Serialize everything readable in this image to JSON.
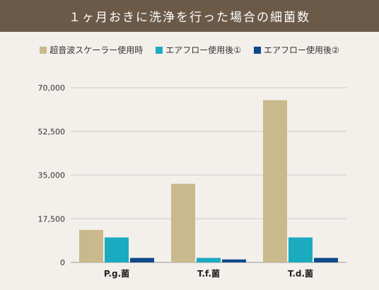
{
  "title": "１ヶ月おきに洗浄を行った場合の細菌数",
  "colors": {
    "title_bg": "#6b5a48",
    "series": [
      "#c9b98c",
      "#1aabc1",
      "#0d4a8c"
    ],
    "grid": "#cccccc",
    "background": "#f3efea"
  },
  "legend": [
    "超音波スケーラー使用時",
    "エアフロー使用後①",
    "エアフロー使用後②"
  ],
  "chart_data": {
    "type": "bar",
    "categories": [
      "P.g.菌",
      "T.f.菌",
      "T.d.菌"
    ],
    "series": [
      {
        "name": "超音波スケーラー使用時",
        "values": [
          13000,
          31500,
          65000
        ]
      },
      {
        "name": "エアフロー使用後①",
        "values": [
          10000,
          1800,
          10000
        ]
      },
      {
        "name": "エアフロー使用後②",
        "values": [
          1800,
          1200,
          1800
        ]
      }
    ],
    "y_ticks": [
      "70,000",
      "52,500",
      "35,000",
      "17,500",
      "0"
    ],
    "ylim": [
      0,
      70000
    ],
    "grid": true,
    "legend_position": "top"
  }
}
